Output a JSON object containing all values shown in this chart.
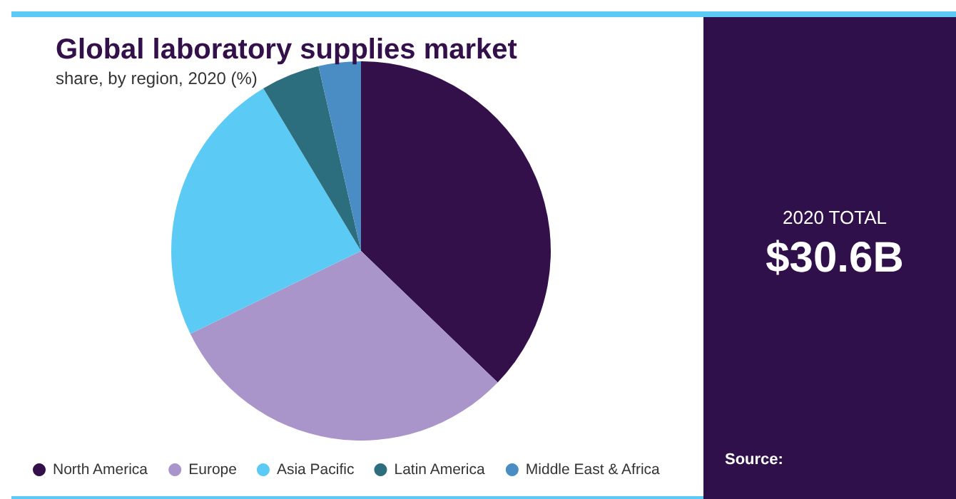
{
  "chart_data": {
    "type": "pie",
    "title": "Global laboratory supplies market",
    "subtitle": "share, by region, 2020 (%)",
    "categories": [
      "North America",
      "Europe",
      "Asia Pacific",
      "Latin America",
      "Middle East & Africa"
    ],
    "values": [
      37.2,
      30.6,
      23.6,
      5.0,
      3.6
    ],
    "colors": [
      "#33104a",
      "#a995c9",
      "#5bcbf5",
      "#2d6e7e",
      "#4a8cc4"
    ],
    "legend": "bottom",
    "annotations": [
      "2020 TOTAL",
      "$30.6B",
      "Source:"
    ]
  }
}
